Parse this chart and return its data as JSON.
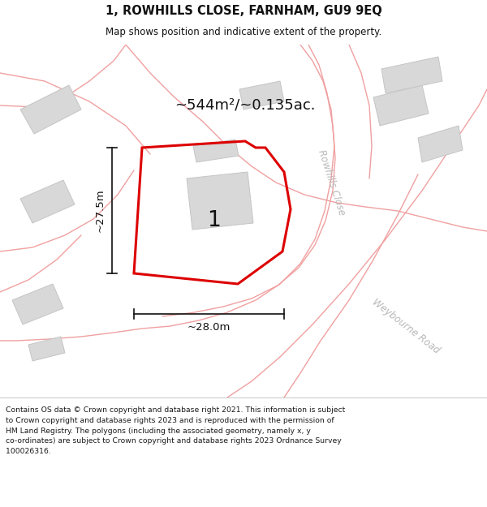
{
  "title": "1, ROWHILLS CLOSE, FARNHAM, GU9 9EQ",
  "subtitle": "Map shows position and indicative extent of the property.",
  "area_text": "~544m²/~0.135ac.",
  "label_number": "1",
  "dim_width": "~28.0m",
  "dim_height": "~27.5m",
  "street_label1": "Rowhills Close",
  "street_label2": "Weybourne Road",
  "footer_line1": "Contains OS data © Crown copyright and database right 2021. This information is subject",
  "footer_line2": "to Crown copyright and database rights 2023 and is reproduced with the permission of",
  "footer_line3": "HM Land Registry. The polygons (including the associated geometry, namely x, y",
  "footer_line4": "co-ordinates) are subject to Crown copyright and database rights 2023 Ordnance Survey",
  "footer_line5": "100026316.",
  "map_bg": "#f7f5f2",
  "plot_color": "#dd0000",
  "road_color": "#f0a0a0",
  "building_color": "#d8d8d8",
  "building_outline": "#c5c5c5",
  "footer_bg": "#ffffff",
  "header_bg": "#ffffff",
  "street_label_color": "#b8b8b8",
  "dim_color": "#111111",
  "text_color": "#111111"
}
